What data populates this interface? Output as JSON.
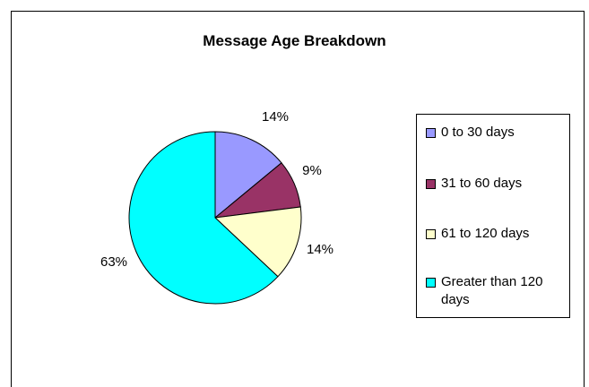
{
  "chart_data": {
    "type": "pie",
    "title": "Message Age Breakdown",
    "categories": [
      "0 to 30 days",
      "31 to 60 days",
      "61 to 120 days",
      "Greater than 120 days"
    ],
    "values": [
      14,
      9,
      14,
      63
    ],
    "labels": [
      "14%",
      "9%",
      "14%",
      "63%"
    ],
    "colors": [
      "#9999ff",
      "#993366",
      "#ffffcc",
      "#00ffff"
    ],
    "legend_position": "right"
  }
}
